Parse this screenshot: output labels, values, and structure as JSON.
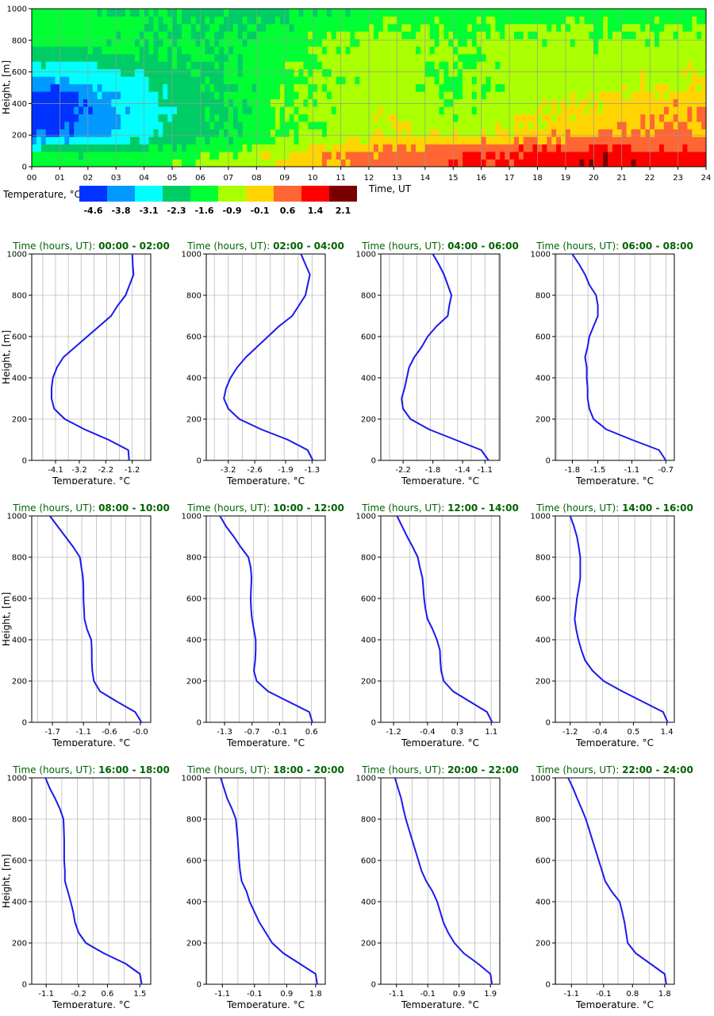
{
  "chart_data": {
    "heatmap": {
      "type": "heatmap",
      "xlabel": "Time, UT",
      "ylabel": "Height, [m]",
      "x_ticks": [
        "00",
        "01",
        "02",
        "03",
        "04",
        "05",
        "06",
        "07",
        "08",
        "09",
        "10",
        "11",
        "12",
        "13",
        "14",
        "15",
        "16",
        "17",
        "18",
        "19",
        "20",
        "21",
        "22",
        "23",
        "24"
      ],
      "y_ticks": [
        "0",
        "200",
        "400",
        "600",
        "800",
        "1000"
      ],
      "xlim": [
        0,
        24
      ],
      "ylim": [
        0,
        1000
      ],
      "height_levels": [
        0,
        50,
        100,
        150,
        200,
        250,
        300,
        350,
        400,
        450,
        500,
        550,
        600,
        650,
        700,
        750,
        800,
        850,
        900,
        950,
        1000
      ],
      "colorbar": {
        "label": "Temperature, °C",
        "colors": [
          "#0033ff",
          "#0099ff",
          "#00ffff",
          "#00cc66",
          "#00ff33",
          "#aaff00",
          "#ffd400",
          "#ff6633",
          "#ff0000",
          "#7a0000"
        ],
        "boundaries": [
          "-4.6",
          "-3.8",
          "-3.1",
          "-2.3",
          "-1.6",
          "-0.9",
          "-0.1",
          "0.6",
          "1.4",
          "2.1"
        ]
      }
    },
    "profiles": [
      {
        "type": "line",
        "title_prefix": "Time (hours, UT):",
        "title_range": "00:00 - 02:00",
        "xlabel": "Temperature, °C",
        "ylabel": "Height, [m]",
        "xlim": [
          -5.0,
          -0.5
        ],
        "x_ticks": [
          -4.1,
          -3.2,
          -2.2,
          -1.2
        ],
        "x_tick_labels": [
          "-4.1",
          "-3.2",
          "-2.2",
          "-1.2"
        ],
        "ylim": [
          0,
          1000
        ],
        "y_ticks": [
          "0",
          "200",
          "400",
          "600",
          "800",
          "1000"
        ],
        "height": [
          0,
          50,
          100,
          150,
          200,
          250,
          300,
          350,
          400,
          450,
          500,
          550,
          600,
          650,
          700,
          750,
          800,
          850,
          900,
          950,
          1000
        ],
        "temperature": [
          -1.32,
          -1.35,
          -2.1,
          -3.0,
          -3.75,
          -4.15,
          -4.25,
          -4.25,
          -4.2,
          -4.05,
          -3.8,
          -3.35,
          -2.9,
          -2.45,
          -2.0,
          -1.75,
          -1.45,
          -1.3,
          -1.15,
          -1.18,
          -1.2
        ]
      },
      {
        "type": "line",
        "title_prefix": "Time (hours, UT):",
        "title_range": "02:00 - 04:00",
        "xlabel": "Temperature, °C",
        "ylabel": "Height, [m]",
        "xlim": [
          -3.7,
          -1.0
        ],
        "x_ticks": [
          -3.2,
          -2.6,
          -1.9,
          -1.3
        ],
        "x_tick_labels": [
          "-3.2",
          "-2.6",
          "-1.9",
          "-1.3"
        ],
        "ylim": [
          0,
          1000
        ],
        "y_ticks": [
          "0",
          "200",
          "400",
          "600",
          "800",
          "1000"
        ],
        "height": [
          0,
          50,
          100,
          150,
          200,
          250,
          300,
          350,
          400,
          450,
          500,
          550,
          600,
          650,
          700,
          750,
          800,
          850,
          900,
          950,
          1000
        ],
        "temperature": [
          -1.28,
          -1.4,
          -1.85,
          -2.45,
          -2.95,
          -3.2,
          -3.3,
          -3.25,
          -3.15,
          -3.0,
          -2.8,
          -2.55,
          -2.3,
          -2.05,
          -1.75,
          -1.6,
          -1.45,
          -1.4,
          -1.35,
          -1.45,
          -1.55
        ]
      },
      {
        "type": "line",
        "title_prefix": "Time (hours, UT):",
        "title_range": "04:00 - 06:00",
        "xlabel": "Temperature, °C",
        "ylabel": "Height, [m]",
        "xlim": [
          -2.5,
          -0.9
        ],
        "x_ticks": [
          -2.2,
          -1.8,
          -1.4,
          -1.1
        ],
        "x_tick_labels": [
          "-2.2",
          "-1.8",
          "-1.4",
          "-1.1"
        ],
        "ylim": [
          0,
          1000
        ],
        "y_ticks": [
          "0",
          "200",
          "400",
          "600",
          "800",
          "1000"
        ],
        "height": [
          0,
          50,
          100,
          150,
          200,
          250,
          300,
          350,
          400,
          450,
          500,
          550,
          600,
          650,
          700,
          750,
          800,
          850,
          900,
          950,
          1000
        ],
        "temperature": [
          -1.05,
          -1.15,
          -1.5,
          -1.85,
          -2.1,
          -2.2,
          -2.22,
          -2.18,
          -2.15,
          -2.12,
          -2.05,
          -1.95,
          -1.87,
          -1.75,
          -1.6,
          -1.58,
          -1.55,
          -1.6,
          -1.65,
          -1.72,
          -1.8
        ]
      },
      {
        "type": "line",
        "title_prefix": "Time (hours, UT):",
        "title_range": "06:00 - 08:00",
        "xlabel": "Temperature, °C",
        "ylabel": "Height, [m]",
        "xlim": [
          -2.0,
          -0.6
        ],
        "x_ticks": [
          -1.8,
          -1.5,
          -1.1,
          -0.7
        ],
        "x_tick_labels": [
          "-1.8",
          "-1.5",
          "-1.1",
          "-0.7"
        ],
        "ylim": [
          0,
          1000
        ],
        "y_ticks": [
          "0",
          "200",
          "400",
          "600",
          "800",
          "1000"
        ],
        "height": [
          0,
          50,
          100,
          150,
          200,
          250,
          300,
          350,
          400,
          450,
          500,
          550,
          600,
          650,
          700,
          750,
          800,
          850,
          900,
          950,
          1000
        ],
        "temperature": [
          -0.7,
          -0.78,
          -1.1,
          -1.4,
          -1.55,
          -1.6,
          -1.62,
          -1.62,
          -1.63,
          -1.63,
          -1.65,
          -1.62,
          -1.6,
          -1.55,
          -1.5,
          -1.5,
          -1.52,
          -1.6,
          -1.65,
          -1.72,
          -1.8
        ]
      },
      {
        "type": "line",
        "title_prefix": "Time (hours, UT):",
        "title_range": "08:00 - 10:00",
        "xlabel": "Temperature, °C",
        "ylabel": "Height, [m]",
        "xlim": [
          -2.1,
          0.2
        ],
        "x_ticks": [
          -1.7,
          -1.1,
          -0.6,
          0.0
        ],
        "x_tick_labels": [
          "-1.7",
          "-1.1",
          "-0.6",
          "-0.0"
        ],
        "ylim": [
          0,
          1000
        ],
        "y_ticks": [
          "0",
          "200",
          "400",
          "600",
          "800",
          "1000"
        ],
        "height": [
          0,
          50,
          100,
          150,
          200,
          250,
          300,
          350,
          400,
          450,
          500,
          550,
          600,
          650,
          700,
          750,
          800,
          850,
          900,
          950,
          1000
        ],
        "temperature": [
          0.02,
          -0.1,
          -0.45,
          -0.78,
          -0.9,
          -0.93,
          -0.94,
          -0.94,
          -0.95,
          -1.03,
          -1.08,
          -1.09,
          -1.1,
          -1.1,
          -1.11,
          -1.14,
          -1.17,
          -1.3,
          -1.45,
          -1.6,
          -1.75
        ]
      },
      {
        "type": "line",
        "title_prefix": "Time (hours, UT):",
        "title_range": "10:00 - 12:00",
        "xlabel": "Temperature, °C",
        "ylabel": "Height, [m]",
        "xlim": [
          -1.7,
          0.9
        ],
        "x_ticks": [
          -1.3,
          -0.7,
          -0.1,
          0.6
        ],
        "x_tick_labels": [
          "-1.3",
          "-0.7",
          "-0.1",
          "0.6"
        ],
        "ylim": [
          0,
          1000
        ],
        "y_ticks": [
          "0",
          "200",
          "400",
          "600",
          "800",
          "1000"
        ],
        "height": [
          0,
          50,
          100,
          150,
          200,
          250,
          300,
          350,
          400,
          450,
          500,
          550,
          600,
          650,
          700,
          750,
          800,
          850,
          900,
          950,
          1000
        ],
        "temperature": [
          0.62,
          0.55,
          0.1,
          -0.35,
          -0.6,
          -0.66,
          -0.63,
          -0.62,
          -0.62,
          -0.66,
          -0.7,
          -0.72,
          -0.73,
          -0.72,
          -0.71,
          -0.73,
          -0.78,
          -0.95,
          -1.1,
          -1.27,
          -1.4
        ]
      },
      {
        "type": "line",
        "title_prefix": "Time (hours, UT):",
        "title_range": "12:00 - 14:00",
        "xlabel": "Temperature, °C",
        "ylabel": "Height, [m]",
        "xlim": [
          -1.5,
          1.3
        ],
        "x_ticks": [
          -1.2,
          -0.4,
          0.3,
          1.1
        ],
        "x_tick_labels": [
          "-1.2",
          "-0.4",
          "0.3",
          "1.1"
        ],
        "ylim": [
          0,
          1000
        ],
        "y_ticks": [
          "0",
          "200",
          "400",
          "600",
          "800",
          "1000"
        ],
        "height": [
          0,
          50,
          100,
          150,
          200,
          250,
          300,
          350,
          400,
          450,
          500,
          550,
          600,
          650,
          700,
          750,
          800,
          850,
          900,
          950,
          1000
        ],
        "temperature": [
          1.12,
          1.0,
          0.6,
          0.2,
          -0.02,
          -0.08,
          -0.1,
          -0.11,
          -0.18,
          -0.28,
          -0.4,
          -0.45,
          -0.48,
          -0.5,
          -0.52,
          -0.58,
          -0.63,
          -0.75,
          -0.88,
          -1.0,
          -1.12
        ]
      },
      {
        "type": "line",
        "title_prefix": "Time (hours, UT):",
        "title_range": "14:00 - 16:00",
        "xlabel": "Temperature, °C",
        "ylabel": "Height, [m]",
        "xlim": [
          -1.6,
          1.6
        ],
        "x_ticks": [
          -1.2,
          -0.4,
          0.5,
          1.4
        ],
        "x_tick_labels": [
          "-1.2",
          "-0.4",
          "0.5",
          "1.4"
        ],
        "ylim": [
          0,
          1000
        ],
        "y_ticks": [
          "0",
          "200",
          "400",
          "600",
          "800",
          "1000"
        ],
        "height": [
          0,
          50,
          100,
          150,
          200,
          250,
          300,
          350,
          400,
          450,
          500,
          550,
          600,
          650,
          700,
          750,
          800,
          850,
          900,
          950,
          1000
        ],
        "temperature": [
          1.42,
          1.3,
          0.75,
          0.2,
          -0.3,
          -0.6,
          -0.8,
          -0.9,
          -0.98,
          -1.04,
          -1.08,
          -1.05,
          -1.02,
          -0.97,
          -0.93,
          -0.93,
          -0.93,
          -0.97,
          -1.02,
          -1.1,
          -1.2
        ]
      },
      {
        "type": "line",
        "title_prefix": "Time (hours, UT):",
        "title_range": "16:00 - 18:00",
        "xlabel": "Temperature, °C",
        "ylabel": "Height, [m]",
        "xlim": [
          -1.5,
          1.8
        ],
        "x_ticks": [
          -1.1,
          -0.2,
          0.6,
          1.5
        ],
        "x_tick_labels": [
          "-1.1",
          "-0.2",
          "0.6",
          "1.5"
        ],
        "ylim": [
          0,
          1000
        ],
        "y_ticks": [
          "0",
          "200",
          "400",
          "600",
          "800",
          "1000"
        ],
        "height": [
          0,
          50,
          100,
          150,
          200,
          250,
          300,
          350,
          400,
          450,
          500,
          550,
          600,
          650,
          700,
          750,
          800,
          850,
          900,
          950,
          1000
        ],
        "temperature": [
          1.55,
          1.5,
          1.1,
          0.5,
          0.0,
          -0.2,
          -0.3,
          -0.35,
          -0.42,
          -0.5,
          -0.58,
          -0.58,
          -0.6,
          -0.6,
          -0.6,
          -0.61,
          -0.62,
          -0.72,
          -0.85,
          -1.0,
          -1.12
        ]
      },
      {
        "type": "line",
        "title_prefix": "Time (hours, UT):",
        "title_range": "18:00 - 20:00",
        "xlabel": "Temperature, °C",
        "ylabel": "Height, [m]",
        "xlim": [
          -1.6,
          2.1
        ],
        "x_ticks": [
          -1.1,
          -0.1,
          0.9,
          1.8
        ],
        "x_tick_labels": [
          "-1.1",
          "-0.1",
          "0.9",
          "1.8"
        ],
        "ylim": [
          0,
          1000
        ],
        "y_ticks": [
          "0",
          "200",
          "400",
          "600",
          "800",
          "1000"
        ],
        "height": [
          0,
          50,
          100,
          150,
          200,
          250,
          300,
          350,
          400,
          450,
          500,
          550,
          600,
          650,
          700,
          750,
          800,
          850,
          900,
          950,
          1000
        ],
        "temperature": [
          1.85,
          1.8,
          1.3,
          0.8,
          0.45,
          0.25,
          0.05,
          -0.1,
          -0.25,
          -0.35,
          -0.5,
          -0.55,
          -0.58,
          -0.6,
          -0.62,
          -0.65,
          -0.68,
          -0.8,
          -0.95,
          -1.05,
          -1.15
        ]
      },
      {
        "type": "line",
        "title_prefix": "Time (hours, UT):",
        "title_range": "20:00 - 22:00",
        "xlabel": "Temperature, °C",
        "ylabel": "Height, [m]",
        "xlim": [
          -1.6,
          2.2
        ],
        "x_ticks": [
          -1.1,
          -0.1,
          0.9,
          1.9
        ],
        "x_tick_labels": [
          "-1.1",
          "-0.1",
          "0.9",
          "1.9"
        ],
        "ylim": [
          0,
          1000
        ],
        "y_ticks": [
          "0",
          "200",
          "400",
          "600",
          "800",
          "1000"
        ],
        "height": [
          0,
          50,
          100,
          150,
          200,
          250,
          300,
          350,
          400,
          450,
          500,
          550,
          600,
          650,
          700,
          750,
          800,
          850,
          900,
          950,
          1000
        ],
        "temperature": [
          1.95,
          1.9,
          1.5,
          1.05,
          0.75,
          0.55,
          0.4,
          0.3,
          0.2,
          0.05,
          -0.15,
          -0.3,
          -0.4,
          -0.5,
          -0.6,
          -0.7,
          -0.8,
          -0.88,
          -0.95,
          -1.05,
          -1.15
        ]
      },
      {
        "type": "line",
        "title_prefix": "Time (hours, UT):",
        "title_range": "22:00 - 24:00",
        "xlabel": "Temperature, °C",
        "ylabel": "Height, [m]",
        "xlim": [
          -1.6,
          2.1
        ],
        "x_ticks": [
          -1.1,
          -0.1,
          0.8,
          1.8
        ],
        "x_tick_labels": [
          "-1.1",
          "-0.1",
          "0.8",
          "1.8"
        ],
        "ylim": [
          0,
          1000
        ],
        "y_ticks": [
          "0",
          "200",
          "400",
          "600",
          "800",
          "1000"
        ],
        "height": [
          0,
          50,
          100,
          150,
          200,
          250,
          300,
          350,
          400,
          450,
          500,
          550,
          600,
          650,
          700,
          750,
          800,
          850,
          900,
          950,
          1000
        ],
        "temperature": [
          1.85,
          1.8,
          1.35,
          0.9,
          0.65,
          0.6,
          0.55,
          0.48,
          0.4,
          0.15,
          -0.05,
          -0.15,
          -0.25,
          -0.35,
          -0.45,
          -0.55,
          -0.65,
          -0.78,
          -0.92,
          -1.05,
          -1.2
        ]
      }
    ]
  }
}
